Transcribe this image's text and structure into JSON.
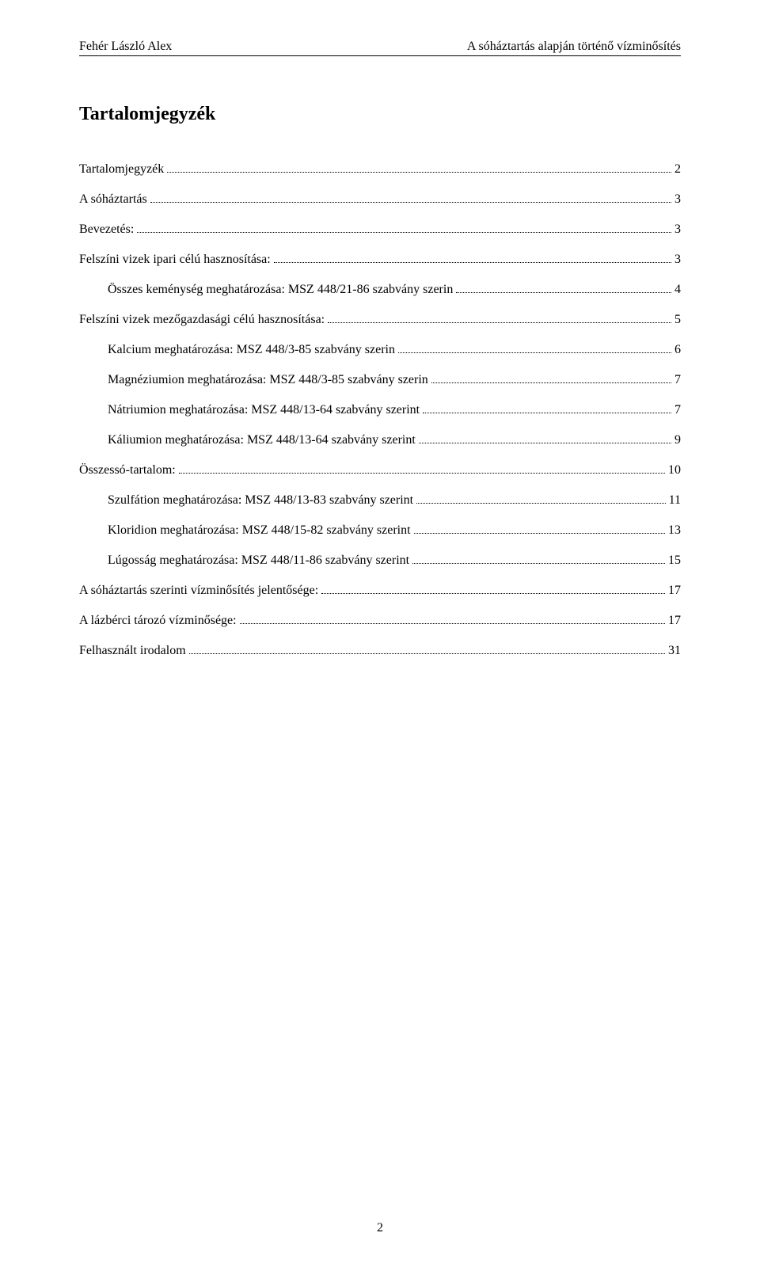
{
  "header": {
    "left": "Fehér László Alex",
    "right": "A sóháztartás alapján történő vízminősítés"
  },
  "title": "Tartalomjegyzék",
  "toc": [
    {
      "label": "Tartalomjegyzék",
      "page": "2",
      "indent": 0
    },
    {
      "label": "A sóháztartás",
      "page": "3",
      "indent": 0
    },
    {
      "label": "Bevezetés:",
      "page": "3",
      "indent": 0
    },
    {
      "label": "Felszíni vizek ipari célú hasznosítása:",
      "page": "3",
      "indent": 0
    },
    {
      "label": "Összes keménység meghatározása: MSZ 448/21-86 szabvány szerin",
      "page": "4",
      "indent": 1
    },
    {
      "label": "Felszíni vizek mezőgazdasági célú hasznosítása:",
      "page": "5",
      "indent": 0
    },
    {
      "label": "Kalcium meghatározása: MSZ 448/3-85 szabvány szerin",
      "page": "6",
      "indent": 1
    },
    {
      "label": "Magnéziumion meghatározása: MSZ 448/3-85 szabvány szerin",
      "page": "7",
      "indent": 1
    },
    {
      "label": "Nátriumion meghatározása: MSZ 448/13-64 szabvány szerint",
      "page": "7",
      "indent": 1
    },
    {
      "label": "Káliumion meghatározása: MSZ 448/13-64 szabvány szerint",
      "page": "9",
      "indent": 1
    },
    {
      "label": "Összessó-tartalom:",
      "page": "10",
      "indent": 0
    },
    {
      "label": "Szulfátion meghatározása: MSZ 448/13-83 szabvány szerint",
      "page": "11",
      "indent": 1
    },
    {
      "label": "Kloridion meghatározása: MSZ 448/15-82 szabvány szerint",
      "page": "13",
      "indent": 1
    },
    {
      "label": "Lúgosság meghatározása: MSZ 448/11-86 szabvány szerint",
      "page": "15",
      "indent": 1
    },
    {
      "label": "A sóháztartás szerinti vízminősítés jelentősége:",
      "page": "17",
      "indent": 0
    },
    {
      "label": "A lázbérci tározó vízminősége:",
      "page": "17",
      "indent": 0
    },
    {
      "label": "Felhasznált irodalom",
      "page": "31",
      "indent": 0
    }
  ],
  "page_number": "2"
}
